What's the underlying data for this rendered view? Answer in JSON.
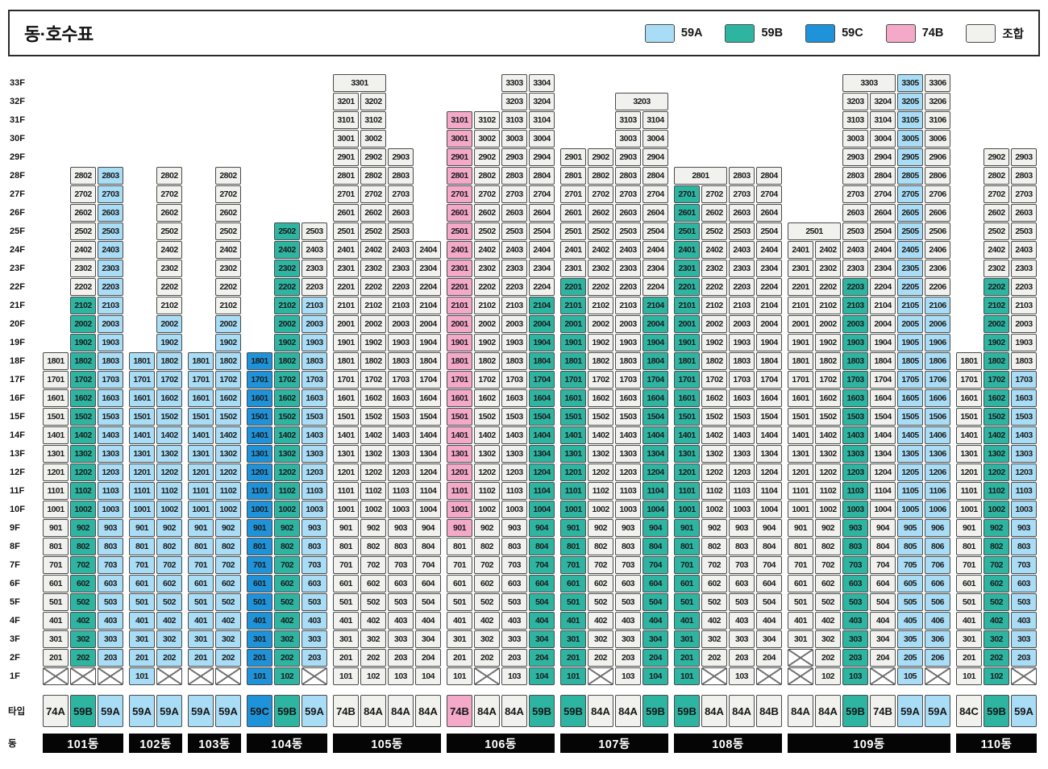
{
  "title": "동·호수표",
  "colors": {
    "A": "#a9dcf5",
    "B": "#2eb5a2",
    "C": "#1f93d9",
    "P": "#f4a9c9",
    "W": "#f1f1ee"
  },
  "legend": [
    {
      "label": "59A",
      "c": "A"
    },
    {
      "label": "59B",
      "c": "B"
    },
    {
      "label": "59C",
      "c": "C"
    },
    {
      "label": "74B",
      "c": "P"
    },
    {
      "label": "조합",
      "c": "W"
    }
  ],
  "floors": [
    "33F",
    "32F",
    "31F",
    "30F",
    "29F",
    "28F",
    "27F",
    "26F",
    "25F",
    "24F",
    "23F",
    "22F",
    "21F",
    "20F",
    "19F",
    "18F",
    "17F",
    "16F",
    "15F",
    "14F",
    "13F",
    "12F",
    "11F",
    "10F",
    "9F",
    "8F",
    "7F",
    "6F",
    "5F",
    "4F",
    "3F",
    "2F",
    "1F"
  ],
  "row_labels": {
    "type": "타입",
    "building": "동"
  },
  "buildings": [
    {
      "name": "101동",
      "units": [
        "01",
        "02",
        "03"
      ],
      "types": [
        {
          "label": "74A",
          "c": "W"
        },
        {
          "label": "59B",
          "c": "B"
        },
        {
          "label": "59A",
          "c": "A"
        }
      ],
      "cols": [
        {
          "x": [
            1
          ],
          "seg": [
            [
              2,
              18,
              "W"
            ]
          ]
        },
        {
          "x": [
            1
          ],
          "seg": [
            [
              2,
              21,
              "B"
            ],
            [
              22,
              28,
              "W"
            ]
          ]
        },
        {
          "x": [
            1
          ],
          "seg": [
            [
              2,
              28,
              "A"
            ]
          ]
        }
      ],
      "merged": []
    },
    {
      "name": "102동",
      "units": [
        "01",
        "02"
      ],
      "types": [
        {
          "label": "59A",
          "c": "A"
        },
        {
          "label": "59A",
          "c": "A"
        }
      ],
      "cols": [
        {
          "x": [],
          "seg": [
            [
              1,
              18,
              "A"
            ]
          ]
        },
        {
          "x": [
            1
          ],
          "seg": [
            [
              2,
              20,
              "A"
            ],
            [
              21,
              28,
              "W"
            ]
          ]
        }
      ],
      "merged": []
    },
    {
      "name": "103동",
      "units": [
        "01",
        "02"
      ],
      "types": [
        {
          "label": "59A",
          "c": "A"
        },
        {
          "label": "59A",
          "c": "A"
        }
      ],
      "cols": [
        {
          "x": [
            1
          ],
          "seg": [
            [
              2,
              18,
              "A"
            ]
          ]
        },
        {
          "x": [
            1
          ],
          "seg": [
            [
              2,
              20,
              "A"
            ],
            [
              21,
              28,
              "W"
            ]
          ]
        }
      ],
      "merged": []
    },
    {
      "name": "104동",
      "units": [
        "01",
        "02",
        "03"
      ],
      "types": [
        {
          "label": "59C",
          "c": "C"
        },
        {
          "label": "59B",
          "c": "B"
        },
        {
          "label": "59A",
          "c": "A"
        }
      ],
      "cols": [
        {
          "x": [],
          "seg": [
            [
              1,
              18,
              "C"
            ]
          ]
        },
        {
          "x": [],
          "seg": [
            [
              1,
              25,
              "B"
            ]
          ]
        },
        {
          "x": [
            1
          ],
          "seg": [
            [
              2,
              21,
              "A"
            ],
            [
              22,
              25,
              "W"
            ]
          ]
        }
      ],
      "merged": []
    },
    {
      "name": "105동",
      "units": [
        "01",
        "02",
        "03",
        "04"
      ],
      "types": [
        {
          "label": "74B",
          "c": "W"
        },
        {
          "label": "84A",
          "c": "W"
        },
        {
          "label": "84A",
          "c": "W"
        },
        {
          "label": "84A",
          "c": "W"
        }
      ],
      "cols": [
        {
          "x": [],
          "seg": [
            [
              1,
              32,
              "W"
            ]
          ]
        },
        {
          "x": [],
          "seg": [
            [
              1,
              32,
              "W"
            ]
          ]
        },
        {
          "x": [],
          "seg": [
            [
              1,
              29,
              "W"
            ]
          ]
        },
        {
          "x": [],
          "seg": [
            [
              1,
              24,
              "W"
            ]
          ]
        }
      ],
      "merged": [
        {
          "f": 33,
          "col": 1,
          "span": 2,
          "label": "3301",
          "c": "W"
        }
      ]
    },
    {
      "name": "106동",
      "units": [
        "01",
        "02",
        "03",
        "04"
      ],
      "types": [
        {
          "label": "74B",
          "c": "P"
        },
        {
          "label": "84A",
          "c": "W"
        },
        {
          "label": "84A",
          "c": "W"
        },
        {
          "label": "59B",
          "c": "B"
        }
      ],
      "cols": [
        {
          "x": [],
          "seg": [
            [
              1,
              8,
              "W"
            ],
            [
              9,
              31,
              "P"
            ]
          ]
        },
        {
          "x": [
            1
          ],
          "seg": [
            [
              2,
              31,
              "W"
            ]
          ]
        },
        {
          "x": [],
          "seg": [
            [
              1,
              33,
              "W"
            ]
          ]
        },
        {
          "x": [],
          "seg": [
            [
              1,
              21,
              "B"
            ],
            [
              22,
              33,
              "W"
            ]
          ]
        }
      ],
      "merged": []
    },
    {
      "name": "107동",
      "units": [
        "01",
        "02",
        "03",
        "04"
      ],
      "types": [
        {
          "label": "59B",
          "c": "B"
        },
        {
          "label": "84A",
          "c": "W"
        },
        {
          "label": "84A",
          "c": "W"
        },
        {
          "label": "59B",
          "c": "B"
        }
      ],
      "cols": [
        {
          "x": [],
          "seg": [
            [
              1,
              22,
              "B"
            ],
            [
              23,
              29,
              "W"
            ]
          ]
        },
        {
          "x": [
            1
          ],
          "seg": [
            [
              2,
              29,
              "W"
            ]
          ]
        },
        {
          "x": [],
          "seg": [
            [
              1,
              31,
              "W"
            ]
          ]
        },
        {
          "x": [],
          "seg": [
            [
              1,
              21,
              "B"
            ],
            [
              22,
              31,
              "W"
            ]
          ]
        }
      ],
      "merged": [
        {
          "f": 32,
          "col": 3,
          "span": 2,
          "label": "3203",
          "c": "W"
        }
      ]
    },
    {
      "name": "108동",
      "units": [
        "01",
        "02",
        "03",
        "04"
      ],
      "types": [
        {
          "label": "59B",
          "c": "B"
        },
        {
          "label": "84A",
          "c": "W"
        },
        {
          "label": "84A",
          "c": "W"
        },
        {
          "label": "84B",
          "c": "W"
        }
      ],
      "cols": [
        {
          "x": [],
          "seg": [
            [
              1,
              27,
              "B"
            ]
          ]
        },
        {
          "x": [
            1
          ],
          "seg": [
            [
              2,
              27,
              "W"
            ]
          ]
        },
        {
          "x": [],
          "seg": [
            [
              1,
              28,
              "W"
            ]
          ]
        },
        {
          "x": [
            1
          ],
          "seg": [
            [
              2,
              28,
              "W"
            ]
          ]
        }
      ],
      "merged": [
        {
          "f": 28,
          "col": 1,
          "span": 2,
          "label": "2801",
          "c": "W"
        }
      ]
    },
    {
      "name": "109동",
      "units": [
        "01",
        "02",
        "03",
        "04",
        "05",
        "06"
      ],
      "types": [
        {
          "label": "84A",
          "c": "W"
        },
        {
          "label": "84A",
          "c": "W"
        },
        {
          "label": "59B",
          "c": "B"
        },
        {
          "label": "74B",
          "c": "W"
        },
        {
          "label": "59A",
          "c": "A"
        },
        {
          "label": "59A",
          "c": "A"
        }
      ],
      "cols": [
        {
          "x": [
            1,
            2
          ],
          "seg": [
            [
              3,
              24,
              "W"
            ]
          ]
        },
        {
          "x": [],
          "seg": [
            [
              1,
              24,
              "W"
            ]
          ]
        },
        {
          "x": [],
          "seg": [
            [
              1,
              22,
              "B"
            ],
            [
              23,
              32,
              "W"
            ]
          ]
        },
        {
          "x": [
            1
          ],
          "seg": [
            [
              2,
              32,
              "W"
            ]
          ]
        },
        {
          "x": [],
          "seg": [
            [
              1,
              33,
              "A"
            ]
          ]
        },
        {
          "x": [
            1
          ],
          "seg": [
            [
              2,
              21,
              "A"
            ],
            [
              22,
              33,
              "W"
            ]
          ]
        }
      ],
      "merged": [
        {
          "f": 25,
          "col": 1,
          "span": 2,
          "label": "2501",
          "c": "W"
        },
        {
          "f": 33,
          "col": 3,
          "span": 2,
          "label": "3303",
          "c": "W"
        }
      ]
    },
    {
      "name": "110동",
      "units": [
        "01",
        "02",
        "03"
      ],
      "types": [
        {
          "label": "84C",
          "c": "W"
        },
        {
          "label": "59B",
          "c": "B"
        },
        {
          "label": "59A",
          "c": "A"
        }
      ],
      "cols": [
        {
          "x": [],
          "seg": [
            [
              1,
              18,
              "W"
            ]
          ]
        },
        {
          "x": [],
          "seg": [
            [
              1,
              22,
              "B"
            ],
            [
              23,
              29,
              "W"
            ]
          ]
        },
        {
          "x": [
            1
          ],
          "seg": [
            [
              2,
              17,
              "A"
            ],
            [
              18,
              29,
              "W"
            ]
          ]
        }
      ],
      "merged": []
    }
  ]
}
